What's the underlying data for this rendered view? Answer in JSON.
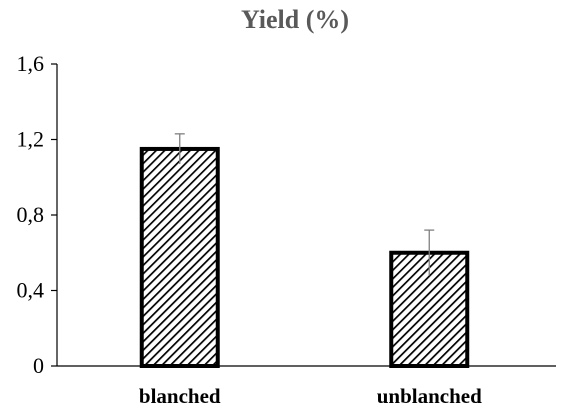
{
  "chart_data": {
    "type": "bar",
    "title": "Yield (%)",
    "xlabel": "",
    "ylabel": "",
    "categories": [
      "blanched",
      "unblanched"
    ],
    "values": [
      1.15,
      0.6
    ],
    "error": [
      0.08,
      0.12
    ],
    "ylim": [
      0,
      1.6
    ],
    "yticks": [
      0,
      0.4,
      0.8,
      1.2,
      1.6
    ],
    "ytick_labels": [
      "0",
      "0,4",
      "0,8",
      "1,2",
      "1,6"
    ],
    "grid": false,
    "legend": "none",
    "bar_fill": "diagonal-hatch",
    "colors": {
      "bar_edge": "#000000",
      "hatch": "#000000",
      "error_bar": "#808080",
      "axis": "#000000",
      "title": "#595959"
    }
  }
}
